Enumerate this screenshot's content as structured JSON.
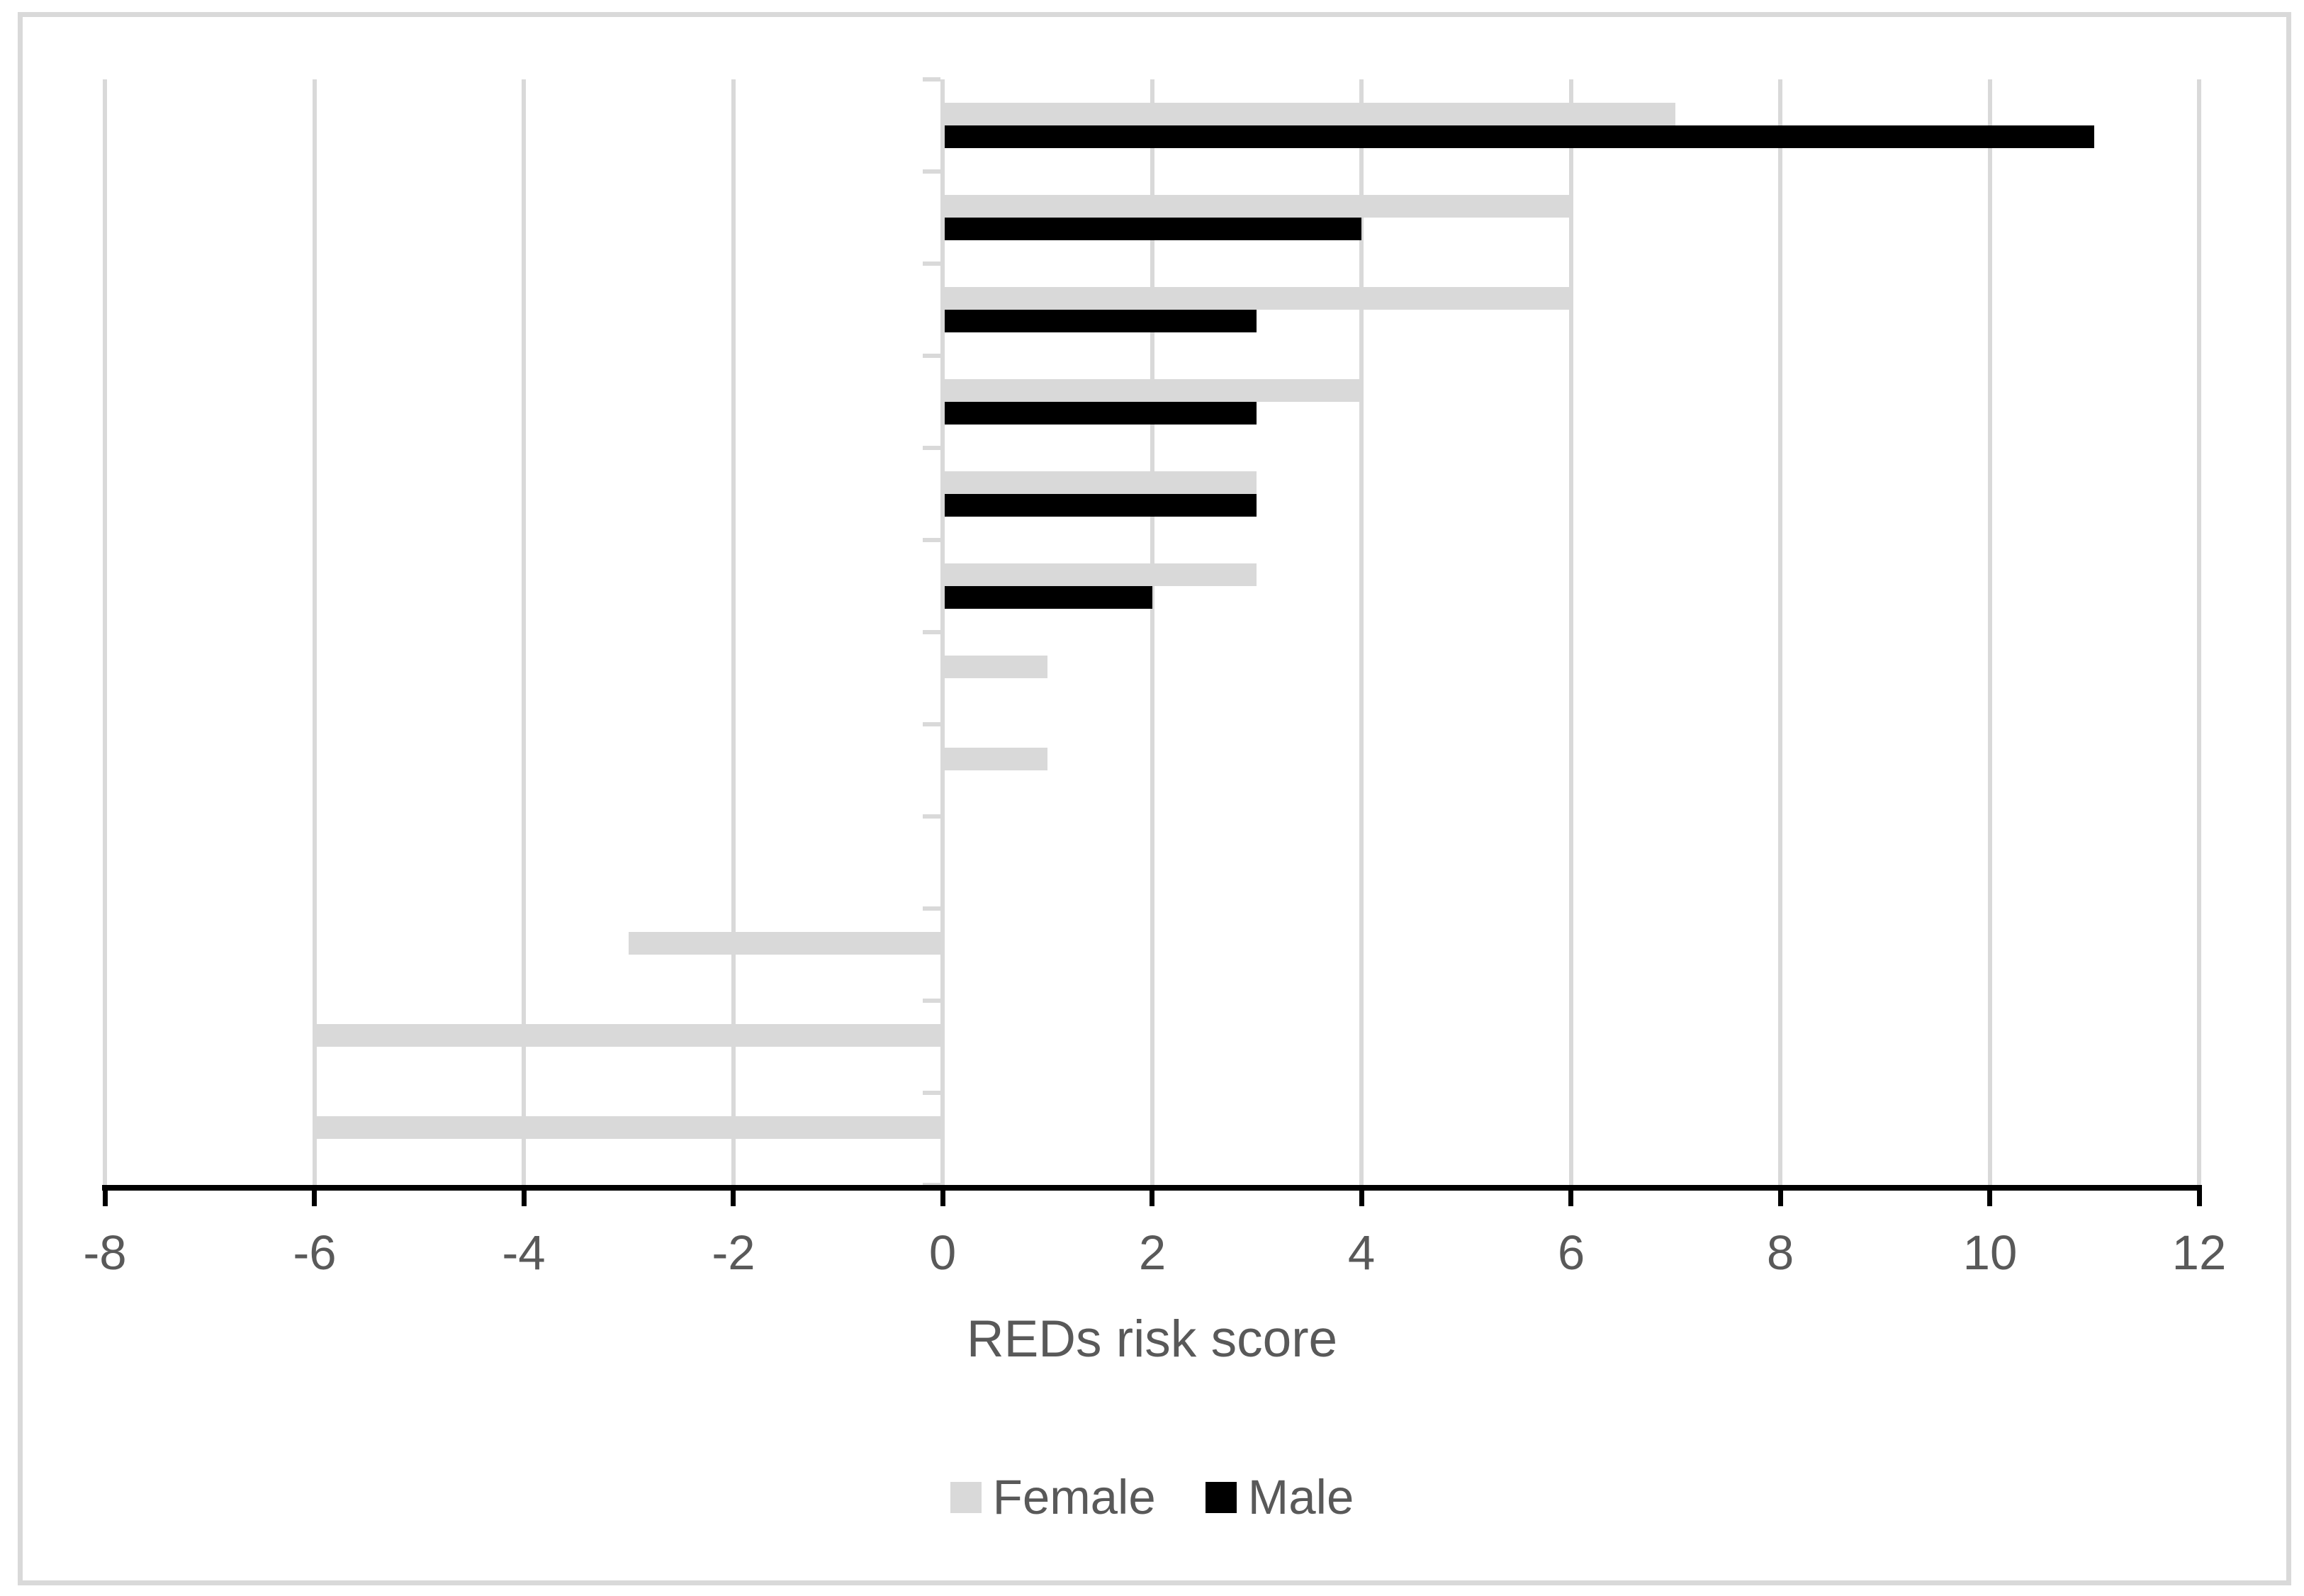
{
  "chart_data": {
    "type": "bar",
    "orientation": "horizontal",
    "title": "",
    "xlabel": "REDs risk score",
    "ylabel": "",
    "xlim": [
      -8,
      12
    ],
    "x_tick_values": [
      -8,
      -6,
      -4,
      -2,
      0,
      2,
      4,
      6,
      8,
      10,
      12
    ],
    "x_tick_labels": [
      "-8",
      "-6",
      "-4",
      "-2",
      "0",
      "2",
      "4",
      "6",
      "8",
      "10",
      "12"
    ],
    "grid": "vertical-gridlines-on",
    "category_labels_shown": false,
    "categories": [
      "",
      "",
      "",
      "",
      "",
      "",
      "",
      "",
      "",
      "",
      "",
      ""
    ],
    "series": [
      {
        "name": "Female",
        "color": "#d9d9d9",
        "values": [
          7,
          6,
          6,
          4,
          3,
          3,
          1,
          1,
          0,
          -3,
          -6,
          -6
        ]
      },
      {
        "name": "Male",
        "color": "#000000",
        "values": [
          11,
          4,
          3,
          3,
          3,
          2,
          0,
          0,
          0,
          0,
          0,
          0
        ]
      }
    ],
    "legend_position": "bottom"
  },
  "colors": {
    "background": "#ffffff",
    "chart_border": "#d9d9d9",
    "gridline": "#d9d9d9",
    "category_axis_line": "#d9d9d9",
    "value_axis_line": "#000000",
    "text": "#595959"
  }
}
